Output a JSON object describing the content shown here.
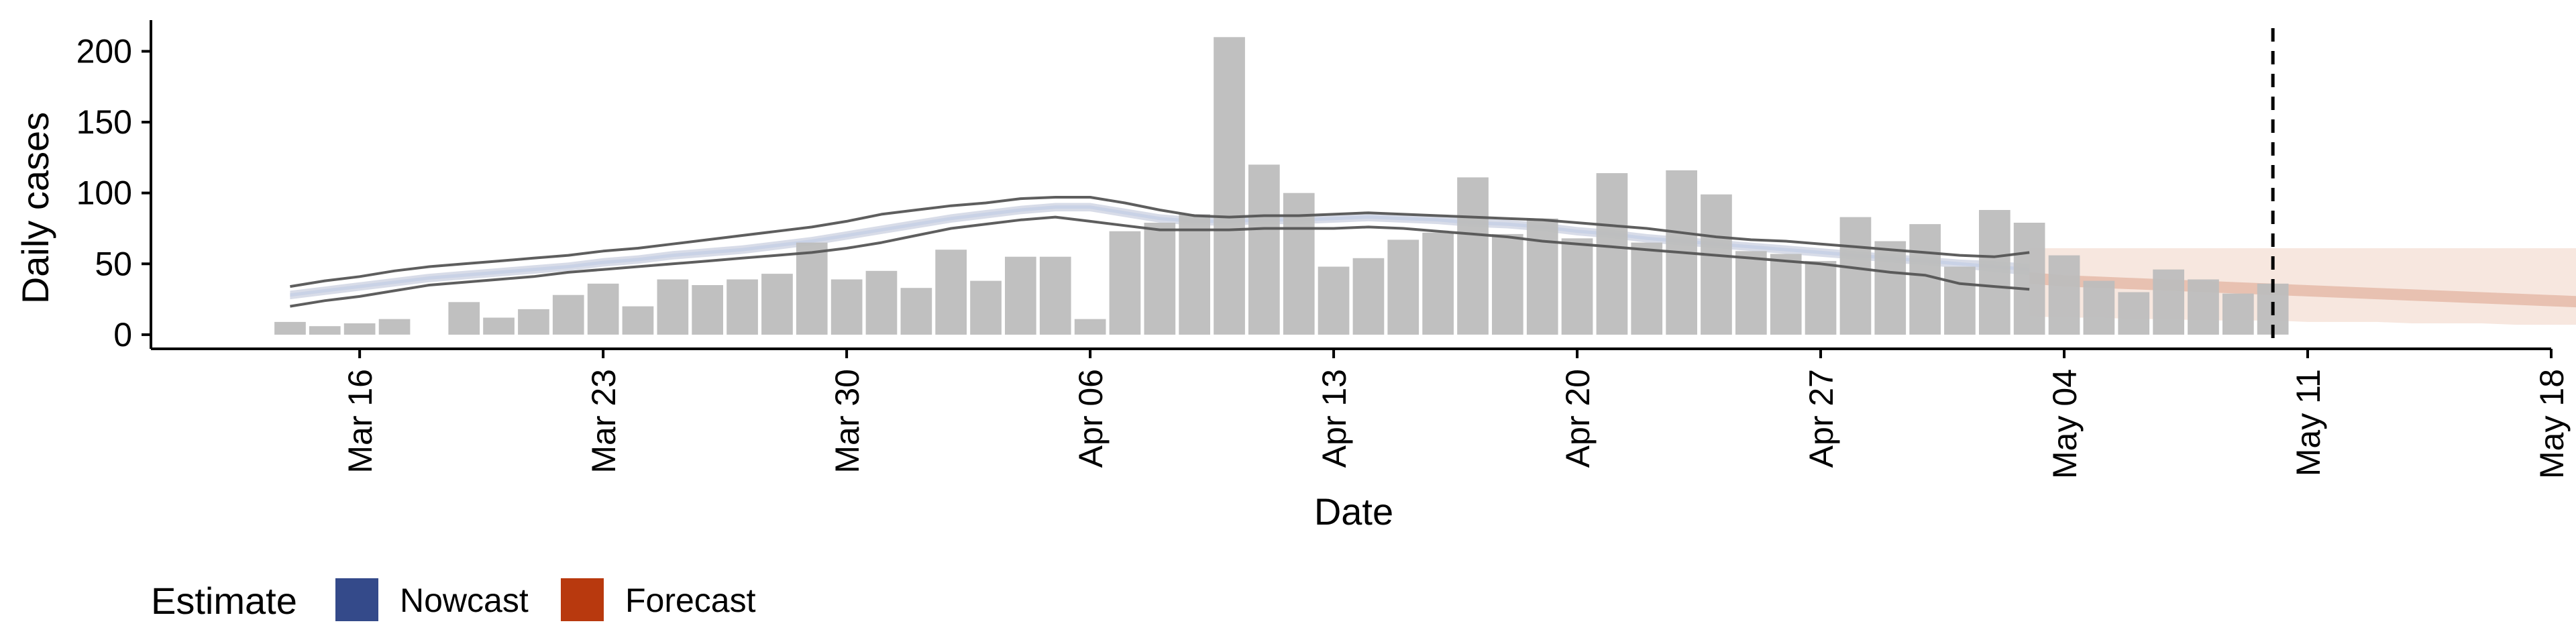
{
  "chart_data": {
    "type": "bar",
    "xlabel": "Date",
    "ylabel": "Daily cases",
    "ylim": [
      -10,
      222
    ],
    "yticks": [
      0,
      50,
      100,
      150,
      200
    ],
    "xlim": [
      "2020-03-10",
      "2020-05-18"
    ],
    "xticks": [
      "2020-03-16",
      "2020-03-23",
      "2020-03-30",
      "2020-04-06",
      "2020-04-13",
      "2020-04-20",
      "2020-04-27",
      "2020-05-04",
      "2020-05-11",
      "2020-05-18"
    ],
    "xtick_labels": [
      "Mar 16",
      "Mar 23",
      "Mar 30",
      "Apr 06",
      "Apr 13",
      "Apr 20",
      "Apr 27",
      "May 04",
      "May 11",
      "May 18"
    ],
    "vline_date": "2020-05-10",
    "bars": {
      "start_date": "2020-03-14",
      "values": [
        9,
        6,
        8,
        11,
        0,
        23,
        12,
        18,
        28,
        36,
        20,
        39,
        35,
        39,
        43,
        65,
        39,
        45,
        33,
        60,
        38,
        55,
        55,
        11,
        73,
        79,
        85,
        210,
        120,
        100,
        48,
        54,
        67,
        72,
        111,
        71,
        82,
        68,
        114,
        65,
        116,
        99,
        59,
        57,
        52,
        83,
        66,
        78,
        48,
        88,
        79,
        56,
        38,
        30,
        46,
        39,
        29,
        36
      ],
      "color": "#bdbdbd"
    },
    "nowcast": {
      "start_date": "2020-03-14",
      "median": [
        28,
        31,
        34,
        37,
        40,
        42,
        44,
        46,
        48,
        51,
        53,
        56,
        58,
        60,
        63,
        66,
        70,
        74,
        78,
        82,
        85,
        88,
        90,
        90,
        86,
        82,
        80,
        80,
        81,
        81,
        82,
        83,
        82,
        81,
        79,
        78,
        76,
        73,
        71,
        68,
        66,
        64,
        62,
        60,
        58,
        56,
        54,
        52,
        50,
        48,
        46
      ],
      "lower50": [
        25,
        28,
        31,
        34,
        37,
        39,
        41,
        43,
        45,
        48,
        50,
        53,
        55,
        57,
        60,
        63,
        67,
        71,
        75,
        79,
        82,
        85,
        87,
        87,
        83,
        79,
        77,
        77,
        78,
        78,
        79,
        80,
        79,
        78,
        76,
        75,
        73,
        70,
        68,
        65,
        63,
        61,
        59,
        57,
        55,
        53,
        51,
        49,
        47,
        44,
        42
      ],
      "upper50": [
        31,
        34,
        37,
        40,
        43,
        45,
        47,
        49,
        51,
        54,
        56,
        59,
        61,
        63,
        66,
        69,
        73,
        77,
        81,
        85,
        88,
        91,
        93,
        93,
        89,
        85,
        83,
        83,
        84,
        84,
        85,
        86,
        85,
        84,
        82,
        81,
        79,
        76,
        74,
        71,
        69,
        67,
        65,
        63,
        61,
        59,
        57,
        55,
        53,
        52,
        50
      ],
      "lower90": [
        20,
        24,
        27,
        31,
        35,
        37,
        39,
        41,
        44,
        46,
        48,
        50,
        52,
        54,
        56,
        58,
        61,
        65,
        70,
        75,
        78,
        81,
        83,
        80,
        77,
        74,
        74,
        74,
        75,
        75,
        75,
        76,
        75,
        73,
        71,
        69,
        66,
        64,
        62,
        60,
        58,
        56,
        54,
        52,
        50,
        47,
        44,
        42,
        36,
        34,
        32
      ],
      "upper90": [
        34,
        38,
        41,
        45,
        48,
        50,
        52,
        54,
        56,
        59,
        61,
        64,
        67,
        70,
        73,
        76,
        80,
        85,
        88,
        91,
        93,
        96,
        97,
        97,
        93,
        88,
        84,
        83,
        84,
        84,
        85,
        86,
        85,
        84,
        83,
        82,
        81,
        79,
        77,
        75,
        72,
        69,
        67,
        66,
        64,
        62,
        60,
        58,
        56,
        55,
        58
      ],
      "color": "#3c4e8a"
    },
    "forecast": {
      "start_date": "2020-05-03",
      "median": [
        40,
        38,
        37,
        36,
        35,
        34,
        33,
        32,
        31,
        30,
        29,
        28,
        27,
        26,
        25,
        24,
        23,
        22,
        21,
        20,
        19,
        18,
        17,
        16,
        16,
        16
      ],
      "lower90": [
        13,
        12,
        12,
        11,
        11,
        10,
        10,
        10,
        9,
        9,
        9,
        8,
        8,
        8,
        7,
        7,
        7,
        6,
        6,
        6,
        6,
        5,
        5,
        5,
        5,
        5
      ],
      "upper90": [
        61,
        61,
        61,
        61,
        61,
        61,
        61,
        61,
        61,
        61,
        61,
        61,
        61,
        61,
        61,
        61,
        61,
        61,
        61,
        61,
        61,
        61,
        61,
        61,
        61,
        61
      ],
      "color": "#b8390e"
    },
    "legend": {
      "title": "Estimate",
      "position": "bottom-left",
      "items": [
        {
          "label": "Nowcast",
          "color": "#344a8a"
        },
        {
          "label": "Forecast",
          "color": "#b8390e"
        }
      ]
    }
  }
}
